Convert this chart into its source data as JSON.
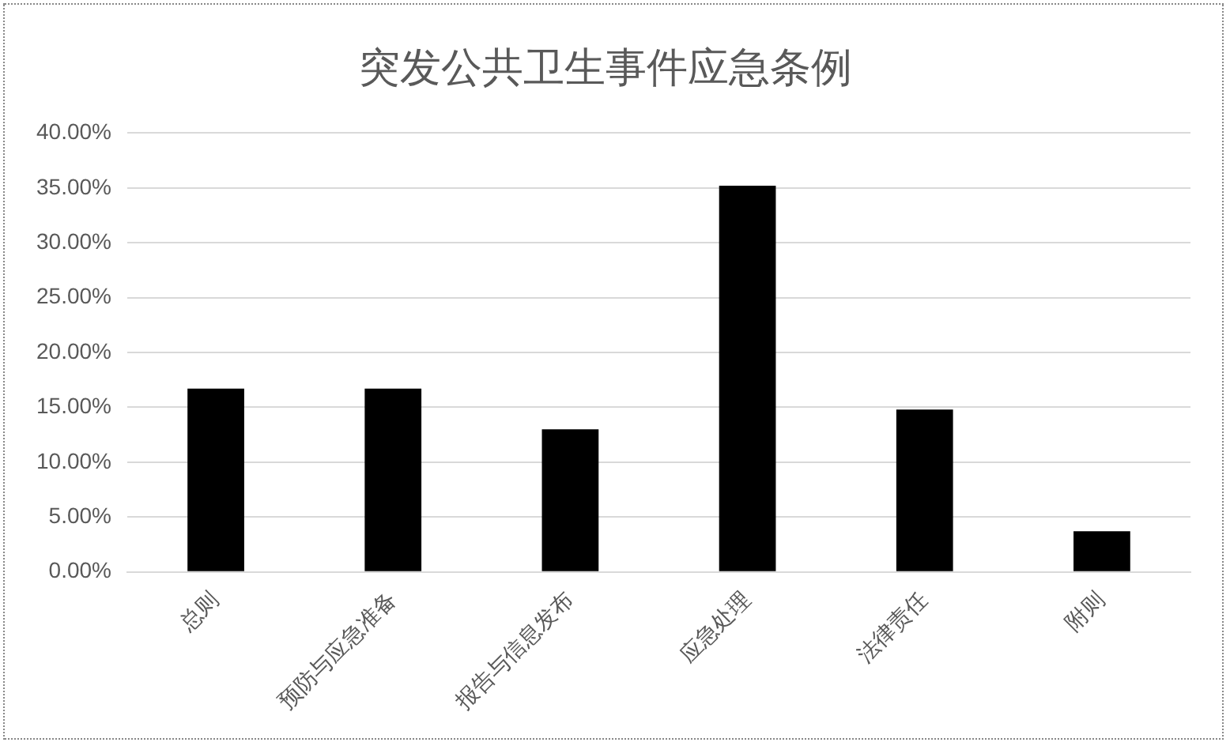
{
  "chart_data": {
    "type": "bar",
    "title": "突发公共卫生事件应急条例",
    "categories": [
      "总则",
      "预防与应急准备",
      "报告与信息发布",
      "应急处理",
      "法律责任",
      "附则"
    ],
    "values": [
      16.7,
      16.7,
      13.0,
      35.2,
      14.8,
      3.7
    ],
    "color": "#000000",
    "ylim": [
      0,
      40
    ],
    "yticks": [
      {
        "value": 0,
        "label": "0.00%"
      },
      {
        "value": 5,
        "label": "5.00%"
      },
      {
        "value": 10,
        "label": "10.00%"
      },
      {
        "value": 15,
        "label": "15.00%"
      },
      {
        "value": 20,
        "label": "20.00%"
      },
      {
        "value": 25,
        "label": "25.00%"
      },
      {
        "value": 30,
        "label": "30.00%"
      },
      {
        "value": 35,
        "label": "35.00%"
      },
      {
        "value": 40,
        "label": "40.00%"
      }
    ],
    "grid": "y",
    "legend": false
  }
}
